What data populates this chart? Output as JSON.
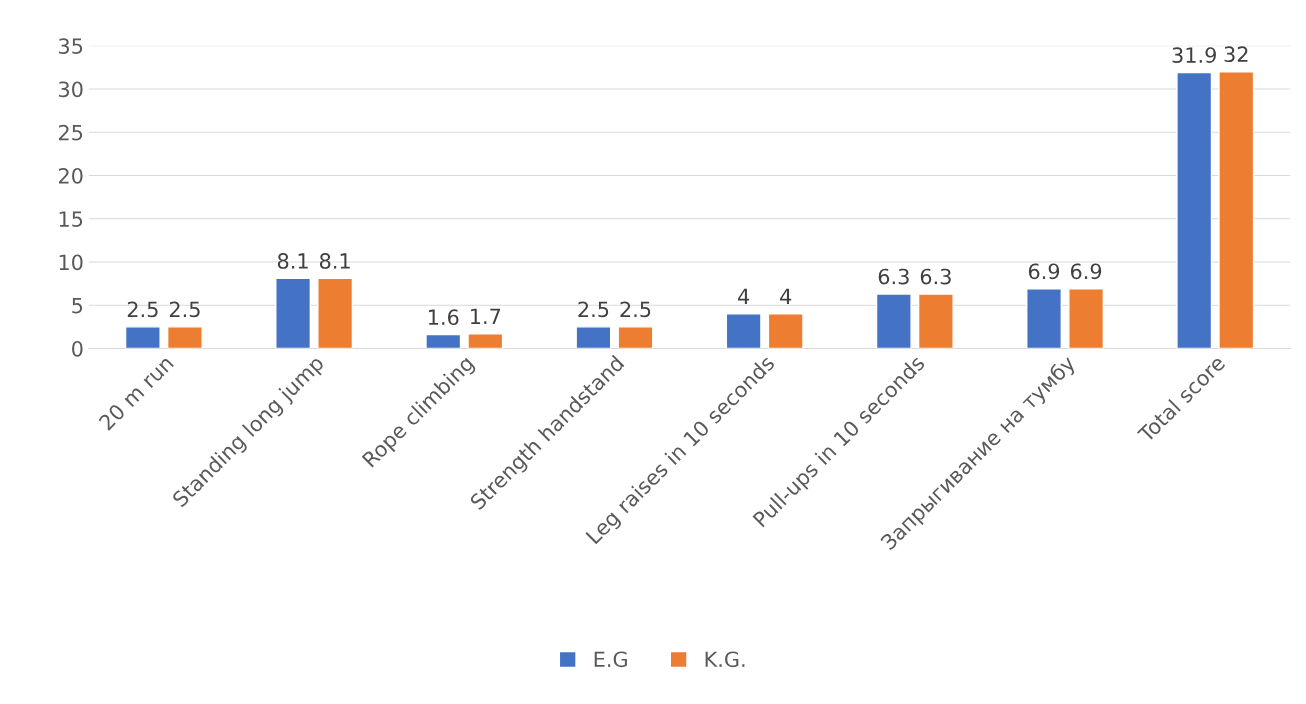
{
  "chart_data": {
    "type": "bar",
    "categories": [
      "20 m run",
      "Standing long jump",
      "Rope climbing",
      "Strength handstand",
      "Leg raises in 10 seconds",
      "Pull-ups in 10 seconds",
      "Запрыгивание на тумбу",
      "Total score"
    ],
    "series": [
      {
        "name": "E.G",
        "color": "#4472c4",
        "values": [
          2.5,
          8.1,
          1.6,
          2.5,
          4,
          6.3,
          6.9,
          31.9
        ]
      },
      {
        "name": "K.G.",
        "color": "#ed7d31",
        "values": [
          2.5,
          8.1,
          1.7,
          2.5,
          4,
          6.3,
          6.9,
          32
        ]
      }
    ],
    "ylim": [
      0,
      35
    ],
    "yticks": [
      0,
      5,
      10,
      15,
      20,
      25,
      30,
      35
    ],
    "grid": "y",
    "legend": "bottom",
    "data_labels": true
  }
}
